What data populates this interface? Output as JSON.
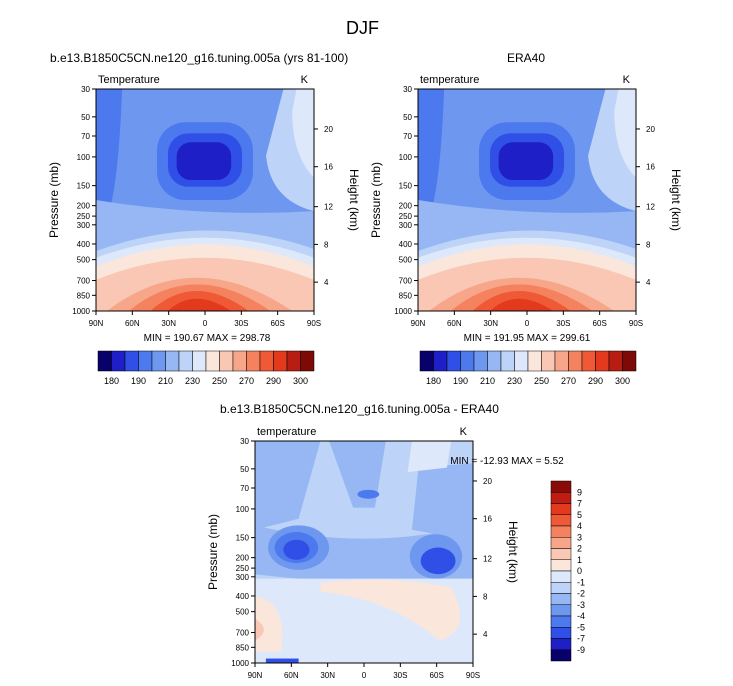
{
  "page_title": "DJF",
  "chart_data": [
    {
      "type": "contour",
      "title": "b.e13.B1850C5CN.ne120_g16.tuning.005a (yrs 81-100)",
      "left_label": "Temperature",
      "units": "K",
      "ylabel": "Pressure (mb)",
      "ylabel_right": "Height (km)",
      "x_ticks": [
        "90N",
        "60N",
        "30N",
        "0",
        "30S",
        "60S",
        "90S"
      ],
      "y_ticks": [
        30,
        50,
        70,
        100,
        150,
        200,
        250,
        300,
        400,
        500,
        700,
        850,
        1000
      ],
      "height_ticks": [
        20,
        16,
        12,
        8,
        4
      ],
      "stats": "MIN = 190.67  MAX = 298.78",
      "colorbar_labels": [
        "180",
        "190",
        "210",
        "230",
        "250",
        "270",
        "290",
        "300"
      ],
      "colorbar_colors": [
        "#08006b",
        "#1f1fc8",
        "#2f4fe6",
        "#4d79ee",
        "#6e97f0",
        "#96b7f3",
        "#bdd3f7",
        "#dde8fb",
        "#fbe6dc",
        "#f9c7b3",
        "#f7a689",
        "#f4825e",
        "#ef5935",
        "#e3391d",
        "#b71d12",
        "#7e0a08"
      ]
    },
    {
      "type": "contour",
      "title": "ERA40",
      "left_label": "temperature",
      "units": "K",
      "ylabel": "Pressure (mb)",
      "ylabel_right": "Height (km)",
      "x_ticks": [
        "90N",
        "60N",
        "30N",
        "0",
        "30S",
        "60S",
        "90S"
      ],
      "y_ticks": [
        30,
        50,
        70,
        100,
        150,
        200,
        250,
        300,
        400,
        500,
        700,
        850,
        1000
      ],
      "height_ticks": [
        20,
        16,
        12,
        8,
        4
      ],
      "stats": "MIN = 191.95  MAX = 299.61",
      "colorbar_labels": [
        "180",
        "190",
        "210",
        "230",
        "250",
        "270",
        "290",
        "300"
      ],
      "colorbar_colors": [
        "#08006b",
        "#1f1fc8",
        "#2f4fe6",
        "#4d79ee",
        "#6e97f0",
        "#96b7f3",
        "#bdd3f7",
        "#dde8fb",
        "#fbe6dc",
        "#f9c7b3",
        "#f7a689",
        "#f4825e",
        "#ef5935",
        "#e3391d",
        "#b71d12",
        "#7e0a08"
      ]
    },
    {
      "type": "contour",
      "title": "b.e13.B1850C5CN.ne120_g16.tuning.005a - ERA40",
      "left_label": "temperature",
      "units": "K",
      "ylabel": "Pressure (mb)",
      "ylabel_right": "Height (km)",
      "x_ticks": [
        "90N",
        "60N",
        "30N",
        "0",
        "30S",
        "60S",
        "90S"
      ],
      "y_ticks": [
        30,
        50,
        70,
        100,
        150,
        200,
        250,
        300,
        400,
        500,
        700,
        850,
        1000
      ],
      "height_ticks": [
        20,
        16,
        12,
        8,
        4
      ],
      "stats": "MIN = -12.93  MAX =   5.52",
      "colorbar_labels": [
        "9",
        "7",
        "5",
        "4",
        "3",
        "2",
        "1",
        "0",
        "-1",
        "-2",
        "-3",
        "-4",
        "-5",
        "-7",
        "-9"
      ],
      "colorbar_colors": [
        "#8a0a08",
        "#c01d12",
        "#e4391d",
        "#ef5935",
        "#f4825e",
        "#f7a689",
        "#f9c7b3",
        "#fbe6dc",
        "#dde8fb",
        "#bdd3f7",
        "#96b7f3",
        "#6e97f0",
        "#4d79ee",
        "#2f4fe6",
        "#1f1fc8",
        "#08006b"
      ]
    }
  ]
}
